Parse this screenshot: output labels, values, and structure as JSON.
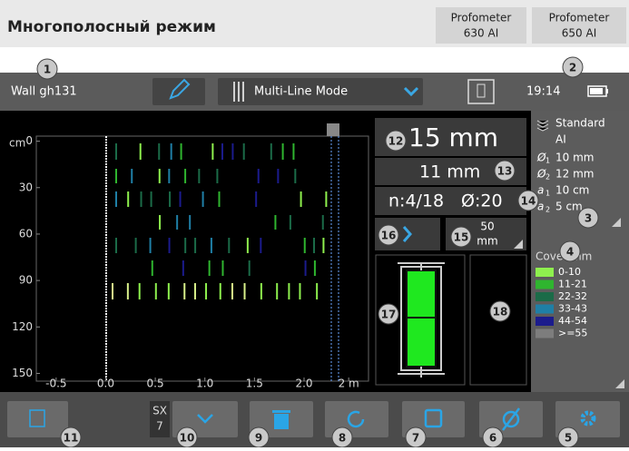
{
  "header": {
    "title": "Многополосный режим",
    "models": [
      [
        "Profometer",
        "630 AI"
      ],
      [
        "Profometer",
        "650 AI"
      ]
    ]
  },
  "topbar": {
    "object": "Wall gh131",
    "mode": "Multi-Line Mode",
    "time": "19:14"
  },
  "scan": {
    "y_unit": "cm",
    "ylim": [
      -15,
      155
    ],
    "yticks": [
      0,
      30,
      60,
      90,
      120,
      150
    ],
    "xlim": [
      -0.7,
      2.65
    ],
    "xticks": [
      {
        "value": -0.5,
        "label": "-0.5"
      },
      {
        "value": 0,
        "label": "0.0"
      },
      0.5,
      {
        "value": 1,
        "label": "1.0"
      },
      1.5,
      {
        "value": 2,
        "label": "2.0"
      },
      {
        "value": 2.45,
        "label": "2 m"
      }
    ]
  },
  "readings": {
    "diameter": "15 mm",
    "cover": "11 mm",
    "count": "n:4/18",
    "bar": "Ø:20",
    "step": [
      "50",
      "mm"
    ]
  },
  "settings": {
    "mode": [
      "Standard",
      "AI"
    ],
    "params": [
      {
        "symbol": "Ø",
        "sub": "1",
        "value": "10 mm"
      },
      {
        "symbol": "Ø",
        "sub": "2",
        "value": "12 mm"
      },
      {
        "symbol": "a",
        "sub": "1",
        "value": "10 cm"
      },
      {
        "symbol": "a",
        "sub": "2",
        "value": "5 cm"
      }
    ]
  },
  "legend": {
    "title": "Cover mm",
    "items": [
      {
        "label": "0-10",
        "color": "#8ef04e"
      },
      {
        "label": "11-21",
        "color": "#2fb52f"
      },
      {
        "label": "22-32",
        "color": "#1b6b48"
      },
      {
        "label": "33-43",
        "color": "#1f7fa6"
      },
      {
        "label": "44-54",
        "color": "#1b1b8c"
      },
      {
        "label": ">=55",
        "color": "#7d7d7d"
      }
    ]
  },
  "toolbar": {
    "sx": [
      "SX",
      "7"
    ]
  },
  "badges": [
    1,
    2,
    3,
    4,
    5,
    6,
    7,
    8,
    9,
    10,
    11,
    12,
    13,
    14,
    15,
    16,
    17,
    18
  ]
}
